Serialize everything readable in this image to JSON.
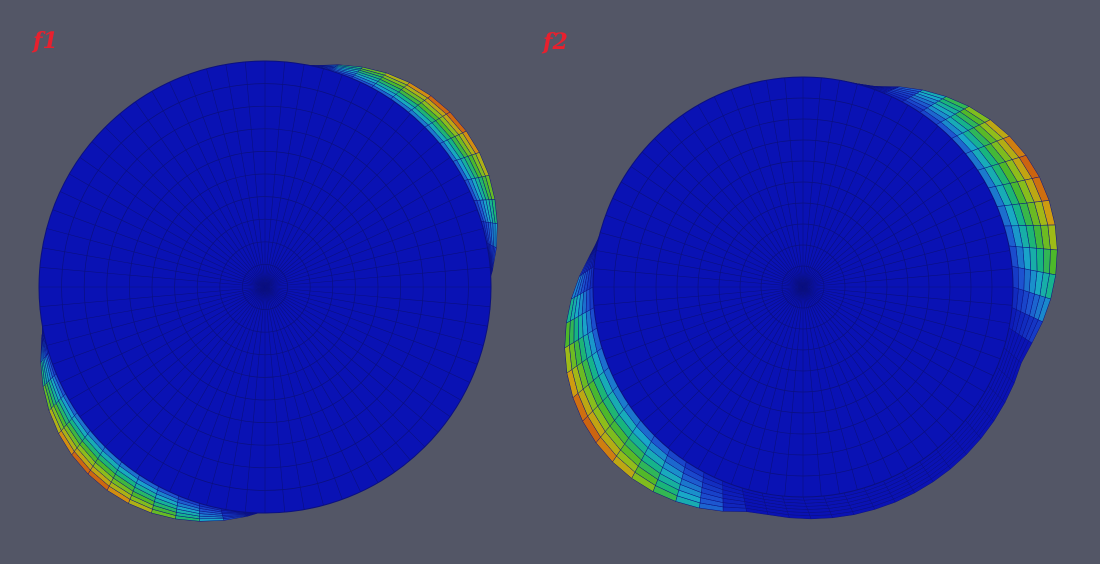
{
  "views": [
    {
      "label": "f1"
    },
    {
      "label": "f2"
    }
  ],
  "colors": {
    "background": "#535666",
    "face": "#0a12b4",
    "mesh_line": "#0b1080",
    "label": "#e8202e",
    "colormap": [
      "#0a12b4",
      "#1d53d0",
      "#19a8c9",
      "#16b580",
      "#4cb82a",
      "#98be18",
      "#d29a10",
      "#c83a10"
    ]
  }
}
